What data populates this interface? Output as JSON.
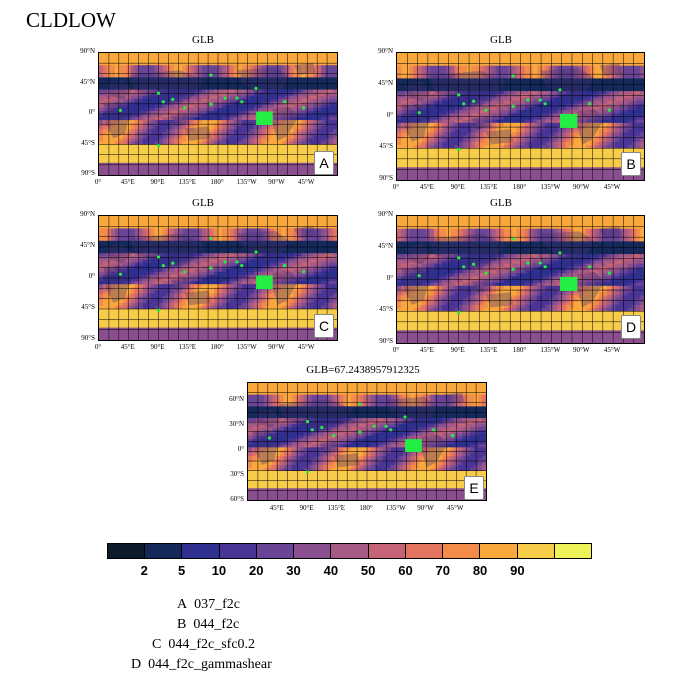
{
  "title": "CLDLOW",
  "panels": [
    {
      "title": "GLB",
      "badge": "A"
    },
    {
      "title": "GLB",
      "badge": "B"
    },
    {
      "title": "GLB",
      "badge": "C"
    },
    {
      "title": "GLB",
      "badge": "D"
    },
    {
      "title": "GLB=67.2438957912325",
      "badge": "E"
    }
  ],
  "lat_labels_full": [
    "90°N",
    "45°N",
    "0°",
    "45°S",
    "90°S"
  ],
  "lat_labels_e": [
    "60°N",
    "30°N",
    "0°",
    "30°S",
    "60°S"
  ],
  "lon_labels_full": [
    "0°",
    "45°E",
    "90°E",
    "135°E",
    "180°",
    "135°W",
    "90°W",
    "45°W"
  ],
  "lon_labels_e": [
    "45°E",
    "90°E",
    "135°E",
    "180°",
    "135°W",
    "90°W",
    "45°W"
  ],
  "colorbar": {
    "colors": [
      "#0d1b2a",
      "#14285a",
      "#2e2f8f",
      "#4a3596",
      "#6a4597",
      "#8a4f8f",
      "#a85a86",
      "#c66477",
      "#e3745f",
      "#f38c4a",
      "#f9a83d",
      "#f7cc48",
      "#eef357"
    ],
    "labels": [
      "2",
      "5",
      "10",
      "20",
      "30",
      "40",
      "50",
      "60",
      "70",
      "80",
      "90"
    ]
  },
  "legend": [
    {
      "letter": "A",
      "name": "037_f2c"
    },
    {
      "letter": "B",
      "name": "044_f2c"
    },
    {
      "letter": "C",
      "name": "044_f2c_sfc0.2"
    },
    {
      "letter": "D",
      "name": "044_f2c_gammashear"
    }
  ]
}
